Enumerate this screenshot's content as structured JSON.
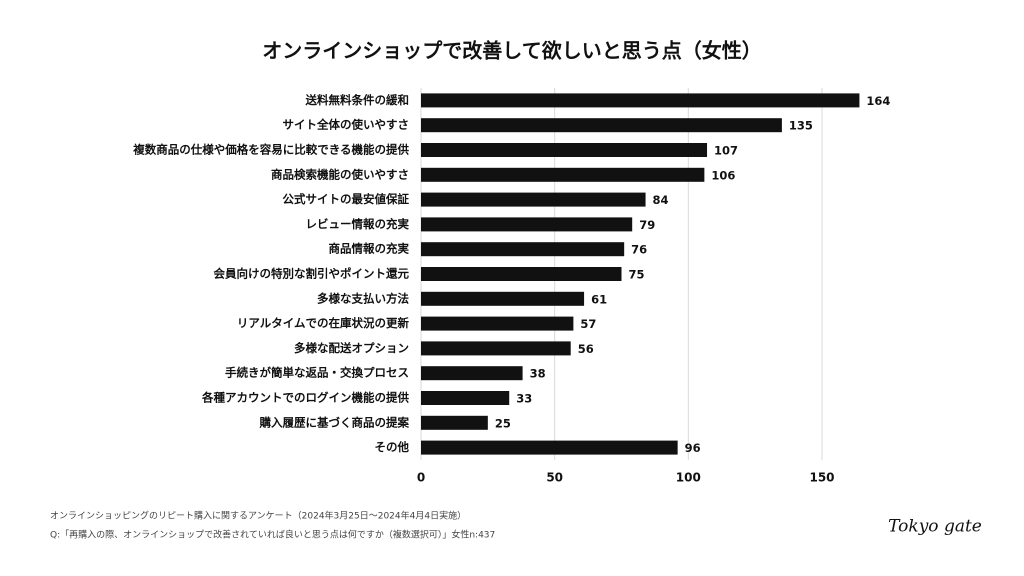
{
  "chart_data": {
    "type": "bar",
    "orientation": "horizontal",
    "title": "オンラインショップで改善して欲しいと思う点（女性）",
    "categories": [
      "送料無料条件の緩和",
      "サイト全体の使いやすさ",
      "複数商品の仕様や価格を容易に比較できる機能の提供",
      "商品検索機能の使いやすさ",
      "公式サイトの最安値保証",
      "レビュー情報の充実",
      "商品情報の充実",
      "会員向けの特別な割引やポイント還元",
      "多様な支払い方法",
      "リアルタイムでの在庫状況の更新",
      "多様な配送オプション",
      "手続きが簡単な返品・交換プロセス",
      "各種アカウントでのログイン機能の提供",
      "購入履歴に基づく商品の提案",
      "その他"
    ],
    "values": [
      164,
      135,
      107,
      106,
      84,
      79,
      76,
      75,
      61,
      57,
      56,
      38,
      33,
      25,
      96
    ],
    "color": "#111111",
    "xlim": [
      0,
      170
    ],
    "xticks": [
      0,
      50,
      100,
      150
    ],
    "grid": true,
    "source": "オンラインショッピングのリピート購入に関するアンケート（2024年3月25日〜2024年4月4日実施）",
    "question": "Q:「再購入の際、オンラインショップで改善されていれば良いと思う点は何ですか（複数選択可）」女性n:437",
    "brand": "Tokyo gate"
  }
}
